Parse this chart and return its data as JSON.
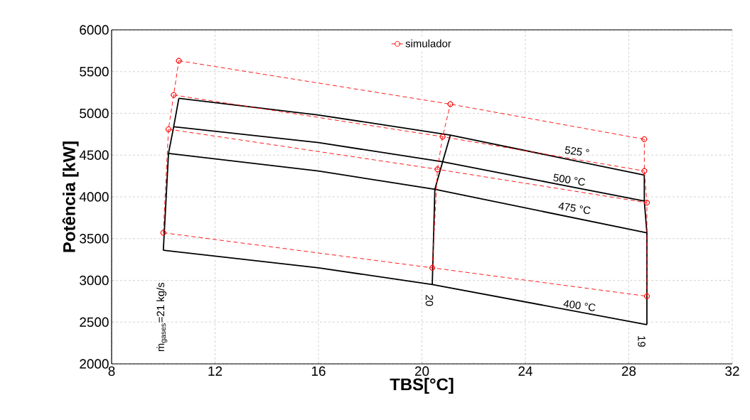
{
  "chart_data": {
    "type": "line",
    "xlabel": "TBS[°C]",
    "ylabel": "Potência [kW]",
    "xlim": [
      8,
      32
    ],
    "xticks": [
      8,
      12,
      16,
      20,
      24,
      28,
      32
    ],
    "ylim": [
      2000,
      6000
    ],
    "yticks": [
      2000,
      2500,
      3000,
      3500,
      4000,
      4500,
      5000,
      5500,
      6000
    ],
    "grid": true,
    "legend": "top",
    "series": [
      {
        "color": "#000000",
        "marker": "none",
        "line_style": "solid",
        "x": [
          10.6,
          16,
          21.1,
          28.6
        ],
        "values": [
          5180,
          4980,
          4740,
          4260
        ]
      },
      {
        "color": "#000000",
        "marker": "none",
        "line_style": "solid",
        "x": [
          10.4,
          16,
          20.8,
          28.6
        ],
        "values": [
          4840,
          4650,
          4420,
          3950
        ]
      },
      {
        "color": "#000000",
        "marker": "none",
        "line_style": "solid",
        "x": [
          10.2,
          16,
          20.5,
          28.7
        ],
        "values": [
          4520,
          4310,
          4090,
          3570
        ]
      },
      {
        "color": "#000000",
        "marker": "none",
        "line_style": "solid",
        "x": [
          10.0,
          16,
          20.4,
          28.7
        ],
        "values": [
          3360,
          3150,
          2950,
          2470
        ]
      },
      {
        "color": "#000000",
        "marker": "none",
        "line_style": "solid",
        "x": [
          10.0,
          10.2,
          10.4,
          10.6
        ],
        "values": [
          3360,
          4520,
          4840,
          5180
        ]
      },
      {
        "color": "#000000",
        "marker": "none",
        "line_style": "solid",
        "x": [
          20.4,
          20.5,
          20.8,
          21.1
        ],
        "values": [
          2950,
          4090,
          4420,
          4740
        ]
      },
      {
        "color": "#000000",
        "marker": "none",
        "line_style": "solid",
        "x": [
          28.7,
          28.7,
          28.6,
          28.6
        ],
        "values": [
          2470,
          3570,
          3950,
          4260
        ]
      },
      {
        "name": "simulador",
        "color": "#ff0000",
        "marker": "circle",
        "line_style": "dashed",
        "x": [
          10.6,
          21.1,
          28.6
        ],
        "values": [
          5630,
          5110,
          4690
        ]
      },
      {
        "color": "#ff0000",
        "marker": "circle",
        "line_style": "dashed",
        "x": [
          10.4,
          20.8,
          28.6
        ],
        "values": [
          5220,
          4720,
          4310
        ]
      },
      {
        "color": "#ff0000",
        "marker": "circle",
        "line_style": "dashed",
        "x": [
          10.2,
          20.6,
          28.7
        ],
        "values": [
          4810,
          4330,
          3930
        ]
      },
      {
        "color": "#ff0000",
        "marker": "circle",
        "line_style": "dashed",
        "x": [
          10.0,
          20.4,
          28.7
        ],
        "values": [
          3570,
          3150,
          2810
        ]
      },
      {
        "color": "#ff0000",
        "marker": "circle",
        "line_style": "dashed",
        "x": [
          10.0,
          10.2,
          10.4,
          10.6
        ],
        "values": [
          3570,
          4810,
          5220,
          5630
        ]
      },
      {
        "color": "#ff0000",
        "marker": "circle",
        "line_style": "dashed",
        "x": [
          20.4,
          20.6,
          20.8,
          21.1
        ],
        "values": [
          3150,
          4330,
          4720,
          5110
        ]
      },
      {
        "color": "#ff0000",
        "marker": "circle",
        "line_style": "dashed",
        "x": [
          28.7,
          28.7,
          28.6,
          28.6
        ],
        "values": [
          2810,
          3930,
          4310,
          4690
        ]
      }
    ],
    "annotations": [
      "525 °",
      "500 °C",
      "475 °C",
      "400 °C",
      "20",
      "19",
      "ṁ$_{gases}$=21 kg/s"
    ]
  }
}
